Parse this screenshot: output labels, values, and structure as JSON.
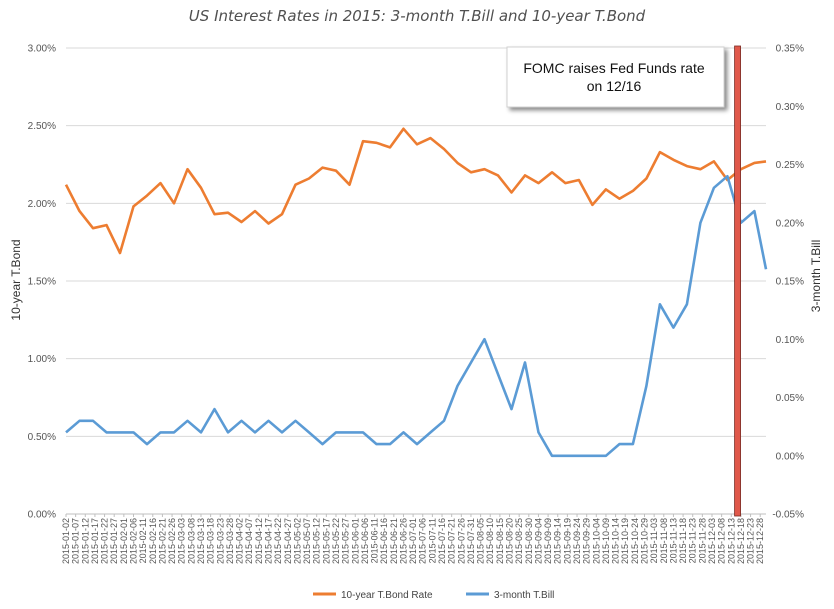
{
  "chart_data": {
    "type": "line",
    "title": "US Interest Rates in 2015: 3-month T.Bill and 10-year T.Bond",
    "y_left": {
      "label": "10-year T.Bond",
      "min": 0,
      "max": 3.0,
      "ticks": [
        "0.00%",
        "0.50%",
        "1.00%",
        "1.50%",
        "2.00%",
        "2.50%",
        "3.00%"
      ]
    },
    "y_right": {
      "label": "3-month T.Bill",
      "min": -0.05,
      "max": 0.35,
      "ticks": [
        "-0.05%",
        "0.00%",
        "0.05%",
        "0.10%",
        "0.15%",
        "0.20%",
        "0.25%",
        "0.30%",
        "0.35%"
      ]
    },
    "x_tick_labels": [
      "2015-01-02",
      "2015-01-07",
      "2015-01-12",
      "2015-01-17",
      "2015-01-22",
      "2015-01-27",
      "2015-02-01",
      "2015-02-06",
      "2015-02-11",
      "2015-02-16",
      "2015-02-21",
      "2015-02-26",
      "2015-03-03",
      "2015-03-08",
      "2015-03-13",
      "2015-03-18",
      "2015-03-23",
      "2015-03-28",
      "2015-04-02",
      "2015-04-07",
      "2015-04-12",
      "2015-04-17",
      "2015-04-22",
      "2015-04-27",
      "2015-05-02",
      "2015-05-07",
      "2015-05-12",
      "2015-05-17",
      "2015-05-22",
      "2015-05-27",
      "2015-06-01",
      "2015-06-06",
      "2015-06-11",
      "2015-06-16",
      "2015-06-21",
      "2015-06-26",
      "2015-07-01",
      "2015-07-06",
      "2015-07-11",
      "2015-07-16",
      "2015-07-21",
      "2015-07-26",
      "2015-07-31",
      "2015-08-05",
      "2015-08-10",
      "2015-08-15",
      "2015-08-20",
      "2015-08-25",
      "2015-08-30",
      "2015-09-04",
      "2015-09-09",
      "2015-09-14",
      "2015-09-19",
      "2015-09-24",
      "2015-09-29",
      "2015-10-04",
      "2015-10-09",
      "2015-10-14",
      "2015-10-19",
      "2015-10-24",
      "2015-10-29",
      "2015-11-03",
      "2015-11-08",
      "2015-11-13",
      "2015-11-18",
      "2015-11-23",
      "2015-11-28",
      "2015-12-03",
      "2015-12-08",
      "2015-12-13",
      "2015-12-18",
      "2015-12-23",
      "2015-12-28"
    ],
    "series": [
      {
        "name": "10-year T.Bond Rate",
        "axis": "left",
        "color": "#ED7D31",
        "x": [
          "2015-01-02",
          "2015-01-09",
          "2015-01-16",
          "2015-01-23",
          "2015-01-30",
          "2015-02-06",
          "2015-02-13",
          "2015-02-20",
          "2015-02-27",
          "2015-03-06",
          "2015-03-13",
          "2015-03-20",
          "2015-03-27",
          "2015-04-03",
          "2015-04-10",
          "2015-04-17",
          "2015-04-24",
          "2015-05-01",
          "2015-05-08",
          "2015-05-15",
          "2015-05-22",
          "2015-05-29",
          "2015-06-05",
          "2015-06-12",
          "2015-06-19",
          "2015-06-26",
          "2015-07-03",
          "2015-07-10",
          "2015-07-17",
          "2015-07-24",
          "2015-07-31",
          "2015-08-07",
          "2015-08-14",
          "2015-08-21",
          "2015-08-28",
          "2015-09-04",
          "2015-09-11",
          "2015-09-18",
          "2015-09-25",
          "2015-10-02",
          "2015-10-09",
          "2015-10-16",
          "2015-10-23",
          "2015-10-30",
          "2015-11-06",
          "2015-11-13",
          "2015-11-20",
          "2015-11-27",
          "2015-12-04",
          "2015-12-11",
          "2015-12-18",
          "2015-12-25",
          "2015-12-31"
        ],
        "values": [
          2.12,
          1.95,
          1.84,
          1.86,
          1.68,
          1.98,
          2.05,
          2.13,
          2.0,
          2.22,
          2.1,
          1.93,
          1.94,
          1.88,
          1.95,
          1.87,
          1.93,
          2.12,
          2.16,
          2.23,
          2.21,
          2.12,
          2.4,
          2.39,
          2.36,
          2.48,
          2.38,
          2.42,
          2.35,
          2.26,
          2.2,
          2.22,
          2.18,
          2.07,
          2.18,
          2.13,
          2.2,
          2.13,
          2.15,
          1.99,
          2.09,
          2.03,
          2.08,
          2.16,
          2.33,
          2.28,
          2.24,
          2.22,
          2.27,
          2.15,
          2.22,
          2.26,
          2.27
        ]
      },
      {
        "name": "3-month T.Bill",
        "axis": "right",
        "color": "#5B9BD5",
        "x": [
          "2015-01-02",
          "2015-01-09",
          "2015-01-16",
          "2015-01-23",
          "2015-01-30",
          "2015-02-06",
          "2015-02-13",
          "2015-02-20",
          "2015-02-27",
          "2015-03-06",
          "2015-03-13",
          "2015-03-20",
          "2015-03-27",
          "2015-04-03",
          "2015-04-10",
          "2015-04-17",
          "2015-04-24",
          "2015-05-01",
          "2015-05-08",
          "2015-05-15",
          "2015-05-22",
          "2015-05-29",
          "2015-06-05",
          "2015-06-12",
          "2015-06-19",
          "2015-06-26",
          "2015-07-03",
          "2015-07-10",
          "2015-07-17",
          "2015-07-24",
          "2015-07-31",
          "2015-08-07",
          "2015-08-14",
          "2015-08-21",
          "2015-08-28",
          "2015-09-04",
          "2015-09-11",
          "2015-09-18",
          "2015-09-25",
          "2015-10-02",
          "2015-10-09",
          "2015-10-16",
          "2015-10-23",
          "2015-10-30",
          "2015-11-06",
          "2015-11-13",
          "2015-11-20",
          "2015-11-27",
          "2015-12-04",
          "2015-12-11",
          "2015-12-18",
          "2015-12-25",
          "2015-12-31"
        ],
        "values": [
          0.02,
          0.03,
          0.03,
          0.02,
          0.02,
          0.02,
          0.01,
          0.02,
          0.02,
          0.03,
          0.02,
          0.04,
          0.02,
          0.03,
          0.02,
          0.03,
          0.02,
          0.03,
          0.02,
          0.01,
          0.02,
          0.02,
          0.02,
          0.01,
          0.01,
          0.02,
          0.01,
          0.02,
          0.03,
          0.06,
          0.08,
          0.1,
          0.07,
          0.04,
          0.08,
          0.02,
          0.0,
          0.0,
          0.0,
          0.0,
          0.0,
          0.01,
          0.01,
          0.06,
          0.13,
          0.11,
          0.13,
          0.2,
          0.23,
          0.24,
          0.2,
          0.21,
          0.16
        ]
      }
    ],
    "fomc_date": "2015-12-16",
    "annotation": {
      "line1": "FOMC raises Fed Funds rate",
      "line2": "on 12/16"
    },
    "legend_position": "bottom",
    "grid": "horizontal"
  }
}
